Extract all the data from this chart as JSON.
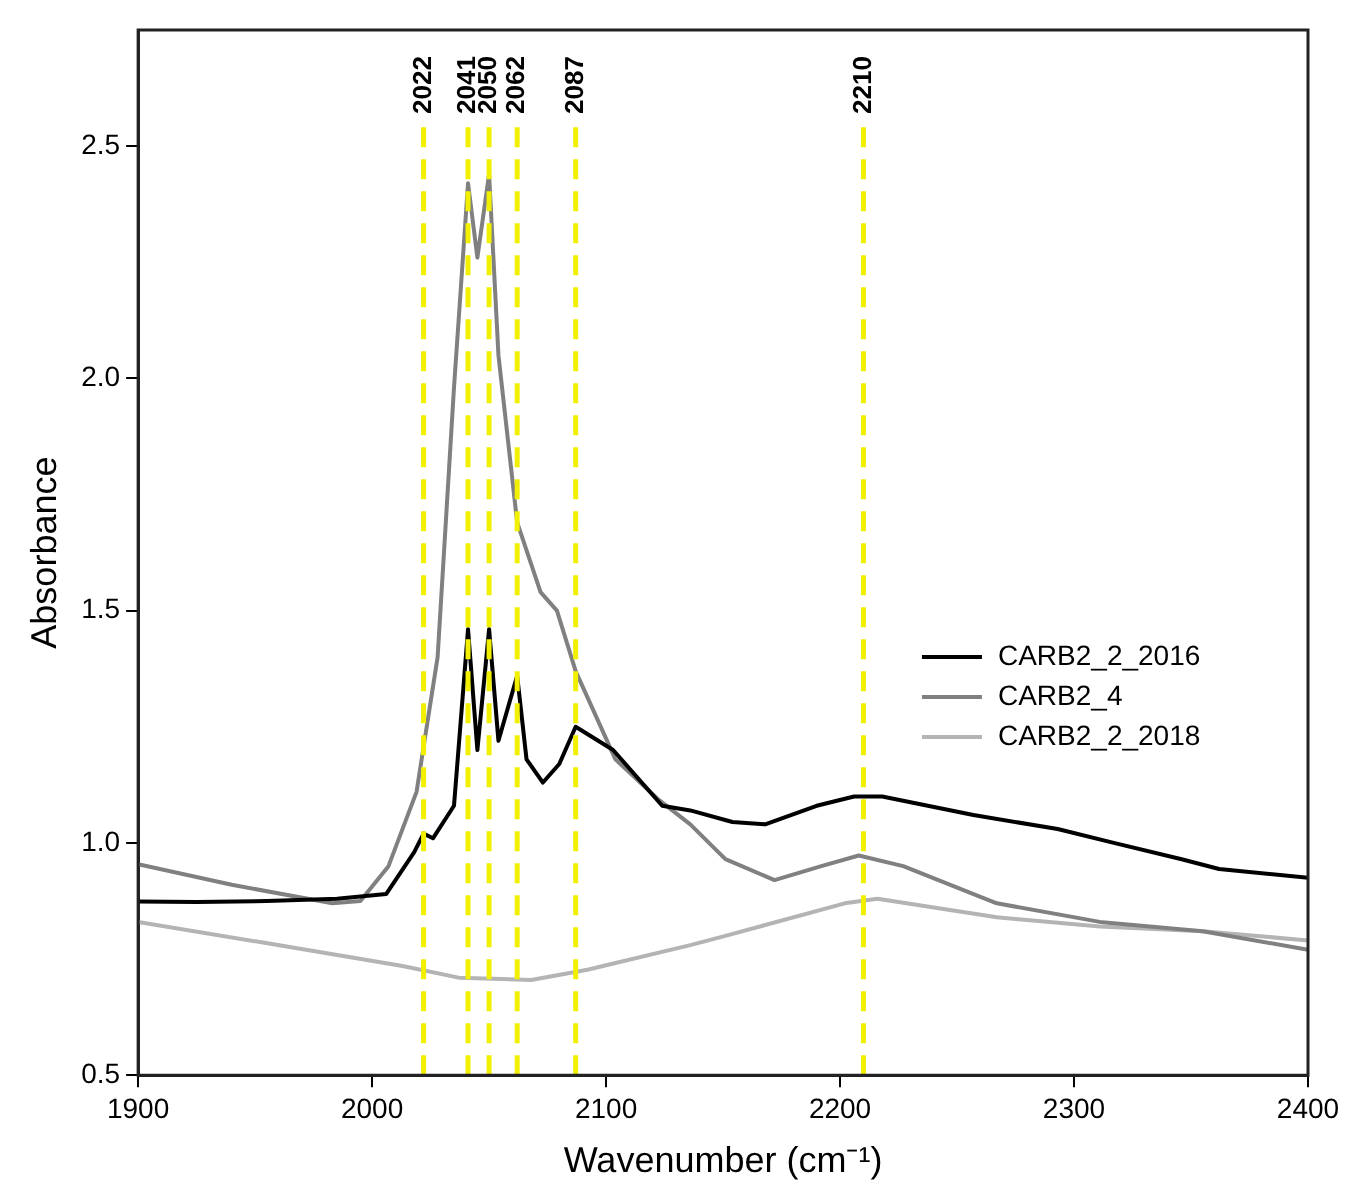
{
  "chart_data": {
    "type": "line",
    "xlabel": "Wavenumber (cm⁻¹)",
    "ylabel": "Absorbance",
    "xlim": [
      1900,
      2400
    ],
    "xticks": [
      1900,
      2000,
      2100,
      2200,
      2300,
      2400
    ],
    "ylim": [
      0.5,
      2.75
    ],
    "yticks": [
      0.5,
      {
        "value": 1,
        "label": "1.0"
      },
      1.5,
      {
        "value": 2,
        "label": "2.0"
      },
      2.5
    ],
    "grid": false,
    "legend": "right",
    "marker": "none",
    "line_style": "solid",
    "series": [
      {
        "name": "CARB2_2_2016",
        "color": "#000000",
        "x": [
          1900,
          1925,
          1955,
          1985,
          2006,
          2018,
          2022,
          2026,
          2035,
          2041,
          2045,
          2050,
          2054,
          2062,
          2066,
          2073,
          2080,
          2087,
          2103,
          2124,
          2136,
          2154,
          2168,
          2190,
          2206,
          2218,
          2257,
          2293,
          2317,
          2346,
          2362,
          2400
        ],
        "values": [
          0.874,
          0.873,
          0.875,
          0.88,
          0.89,
          0.98,
          1.02,
          1.01,
          1.08,
          1.46,
          1.2,
          1.46,
          1.22,
          1.36,
          1.18,
          1.13,
          1.17,
          1.25,
          1.2,
          1.08,
          1.07,
          1.045,
          1.04,
          1.08,
          1.1,
          1.1,
          1.06,
          1.03,
          1.0,
          0.965,
          0.944,
          0.925
        ]
      },
      {
        "name": "CARB2_4",
        "color": "#808080",
        "x": [
          1900,
          1940,
          1983,
          1995,
          2007,
          2019,
          2028,
          2035,
          2041,
          2045,
          2050,
          2054,
          2062,
          2072,
          2079,
          2087,
          2104,
          2122,
          2136,
          2151,
          2172,
          2192,
          2208,
          2227,
          2267,
          2311,
          2355,
          2400
        ],
        "values": [
          0.954,
          0.91,
          0.87,
          0.875,
          0.95,
          1.11,
          1.4,
          1.98,
          2.42,
          2.26,
          2.44,
          2.05,
          1.69,
          1.54,
          1.5,
          1.37,
          1.18,
          1.095,
          1.04,
          0.965,
          0.92,
          0.95,
          0.973,
          0.95,
          0.87,
          0.83,
          0.81,
          0.77
        ]
      },
      {
        "name": "CARB2_2_2018",
        "color": "#b4b4b4",
        "x": [
          1900,
          1954,
          2013,
          2037,
          2068,
          2092,
          2136,
          2151,
          2202,
          2216,
          2267,
          2311,
          2355,
          2400
        ],
        "values": [
          0.83,
          0.785,
          0.735,
          0.71,
          0.705,
          0.727,
          0.78,
          0.8,
          0.87,
          0.88,
          0.84,
          0.82,
          0.81,
          0.79
        ]
      }
    ],
    "ref_lines": [
      {
        "axis": "x",
        "value": 2022,
        "label": "2022",
        "color": "#f0f000",
        "line_style": "dashed"
      },
      {
        "axis": "x",
        "value": 2041,
        "label": "2041",
        "color": "#f0f000",
        "line_style": "dashed"
      },
      {
        "axis": "x",
        "value": 2050,
        "label": "2050",
        "color": "#f0f000",
        "line_style": "dashed"
      },
      {
        "axis": "x",
        "value": 2062,
        "label": "2062",
        "color": "#f0f000",
        "line_style": "dashed"
      },
      {
        "axis": "x",
        "value": 2087,
        "label": "2087",
        "color": "#f0f000",
        "line_style": "dashed"
      },
      {
        "axis": "x",
        "value": 2210,
        "label": "2210",
        "color": "#f0f000",
        "line_style": "dashed"
      }
    ]
  }
}
